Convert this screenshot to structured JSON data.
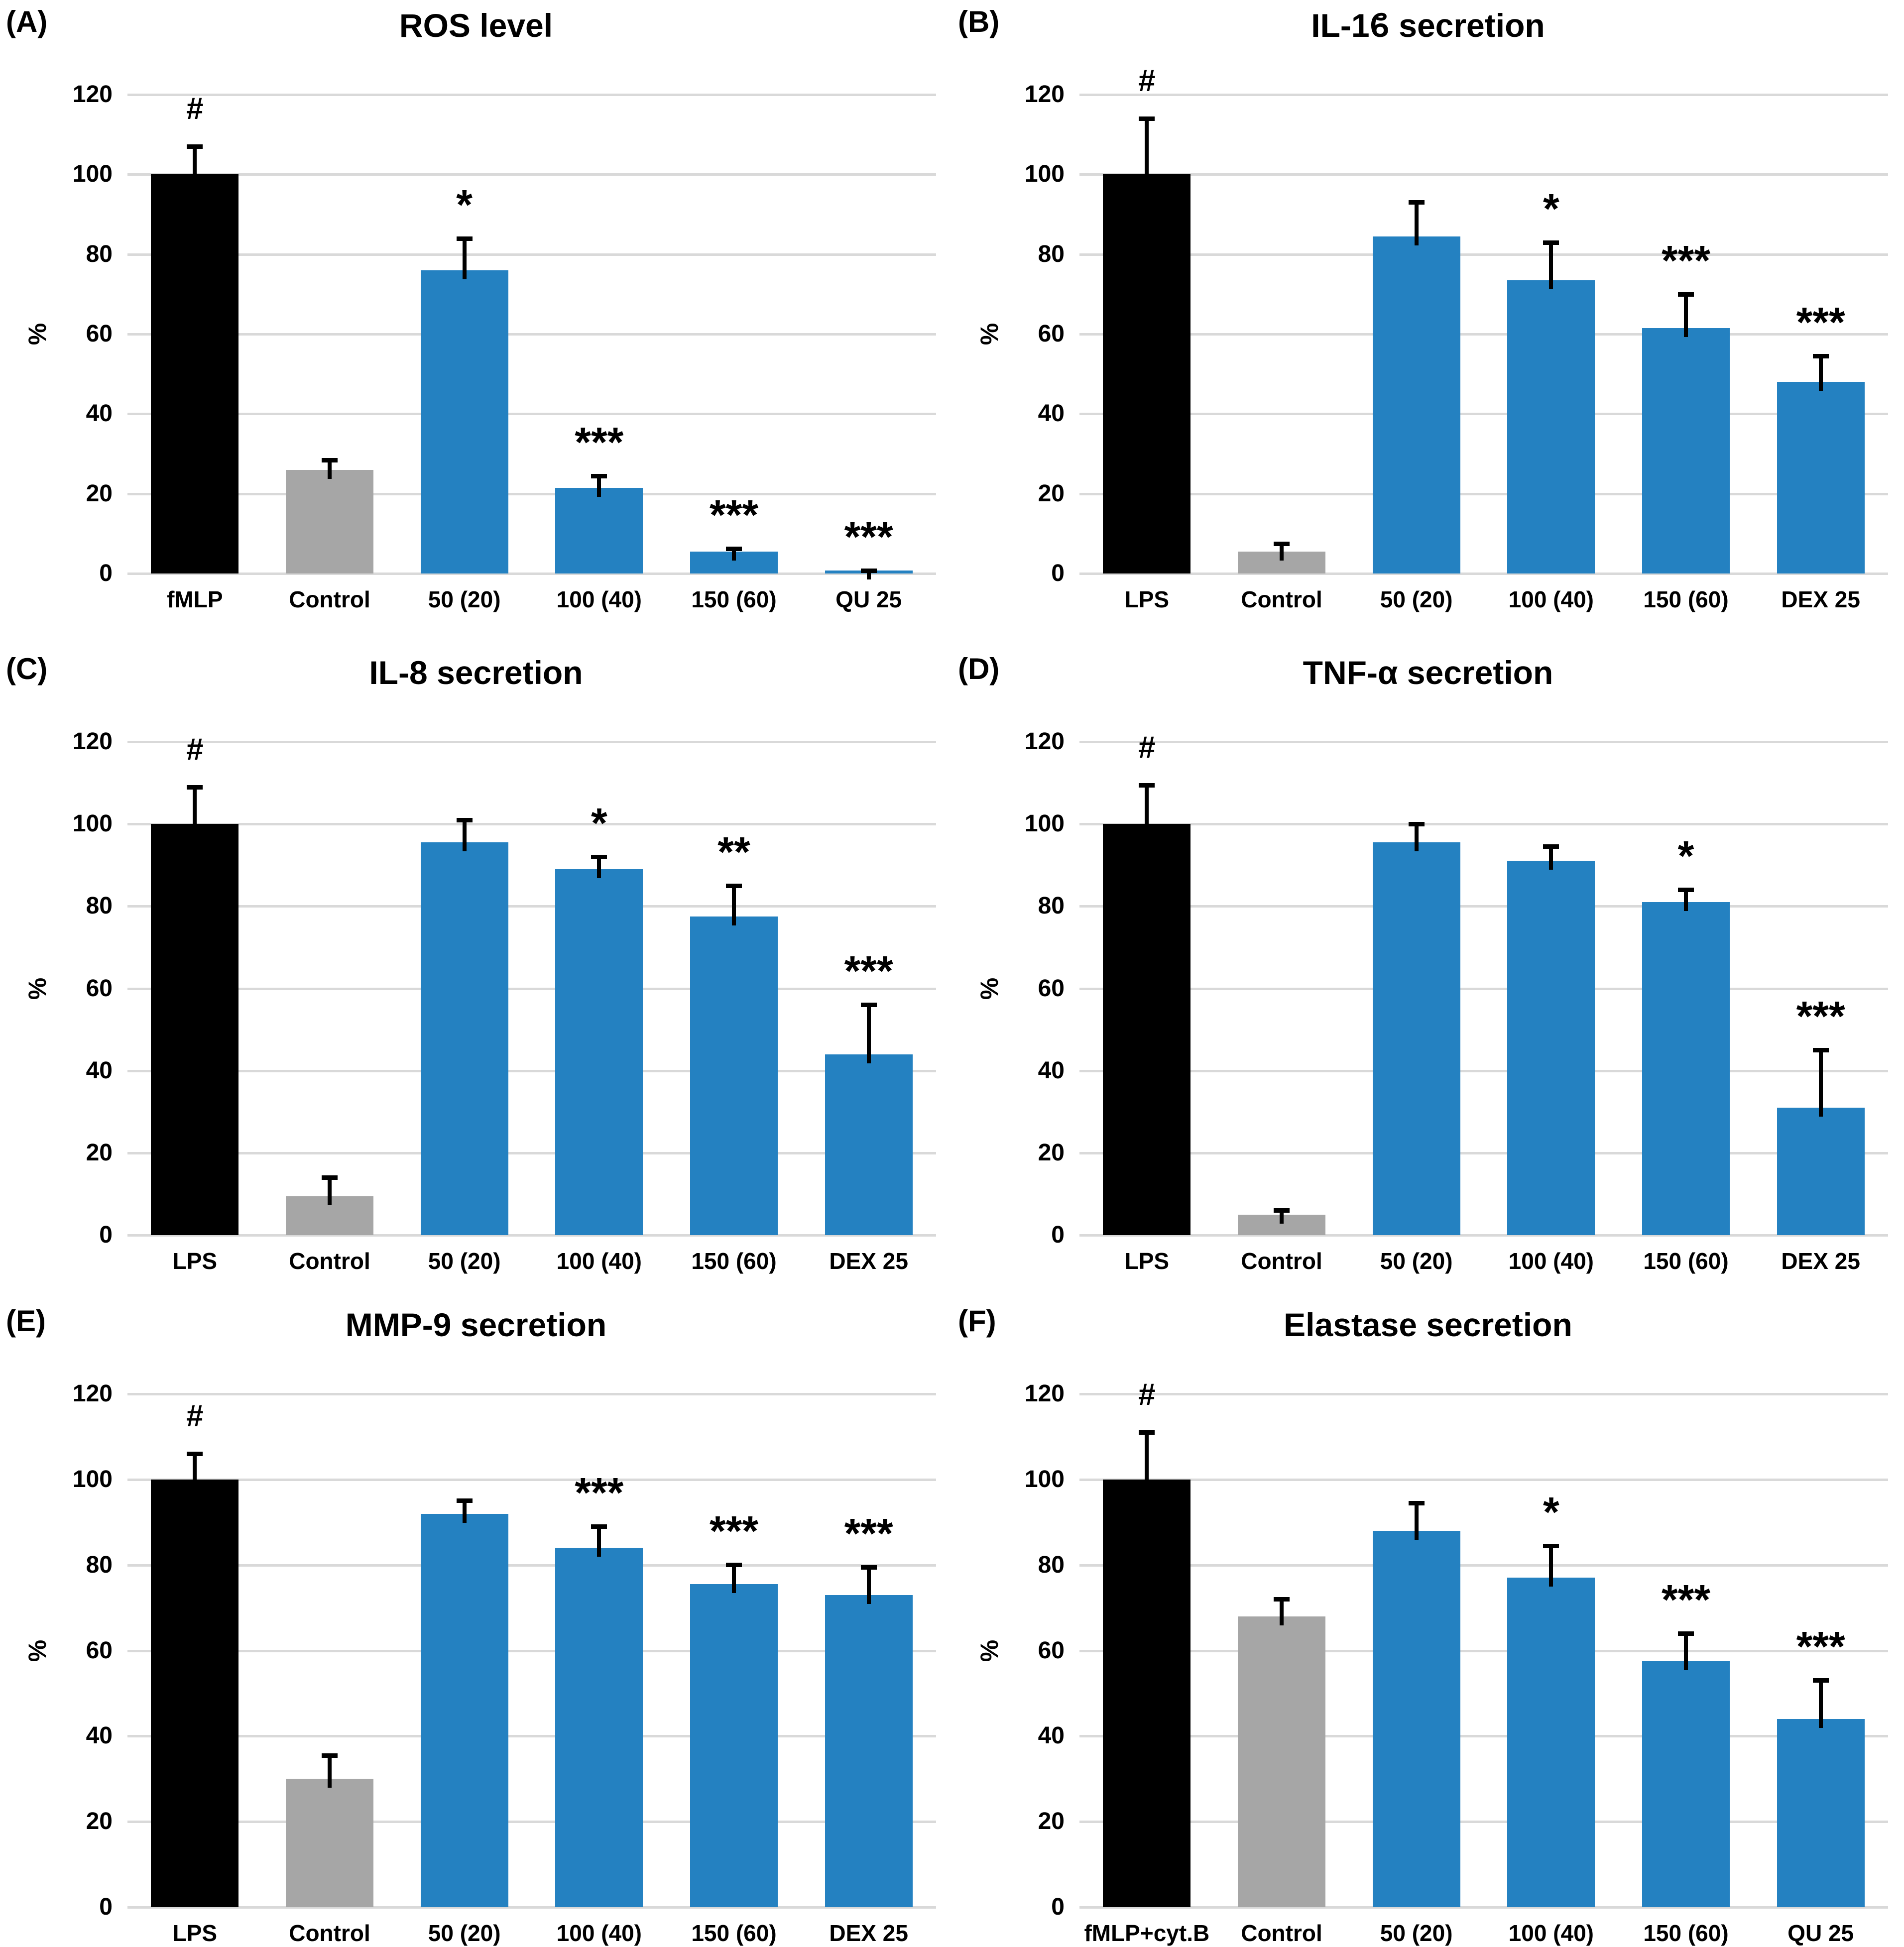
{
  "styles": {
    "bar_black": "#000000",
    "bar_gray": "#A6A6A6",
    "bar_blue": "#2481C1",
    "gridline": "#D9D9D9",
    "text": "#000000"
  },
  "yticks": [
    "0",
    "20",
    "40",
    "60",
    "80",
    "100",
    "120"
  ],
  "chart_data": [
    {
      "type": "bar",
      "letter": "(A)",
      "title": "ROS level",
      "ylabel": "%",
      "ylim": [
        0,
        120
      ],
      "ytick_step": 20,
      "grid": true,
      "legend": "none",
      "categories": [
        "fMLP",
        "Control",
        "50 (20)",
        "100 (40)",
        "150 (60)",
        "QU 25"
      ],
      "values": [
        100,
        26,
        76,
        21.5,
        5.5,
        0.7
      ],
      "errors_up": [
        7.5,
        3,
        8.5,
        3.5,
        1.2,
        0.6
      ],
      "annotations": [
        "#",
        "",
        "*",
        "***",
        "***",
        "***"
      ],
      "colors": [
        "#000000",
        "#A6A6A6",
        "#2481C1",
        "#2481C1",
        "#2481C1",
        "#2481C1"
      ]
    },
    {
      "type": "bar",
      "letter": "(B)",
      "title": "IL-1ϐ secretion",
      "ylabel": "%",
      "ylim": [
        0,
        120
      ],
      "ytick_step": 20,
      "grid": true,
      "legend": "none",
      "categories": [
        "LPS",
        "Control",
        "50 (20)",
        "100 (40)",
        "150 (60)",
        "DEX 25"
      ],
      "values": [
        100,
        5.5,
        84.5,
        73.5,
        61.5,
        48
      ],
      "errors_up": [
        14.5,
        2.5,
        9,
        10,
        9,
        7
      ],
      "annotations": [
        "#",
        "",
        "",
        "*",
        "***",
        "***"
      ],
      "colors": [
        "#000000",
        "#A6A6A6",
        "#2481C1",
        "#2481C1",
        "#2481C1",
        "#2481C1"
      ]
    },
    {
      "type": "bar",
      "letter": "(C)",
      "title": "IL-8 secretion",
      "ylabel": "%",
      "ylim": [
        0,
        120
      ],
      "ytick_step": 20,
      "grid": true,
      "legend": "none",
      "categories": [
        "LPS",
        "Control",
        "50 (20)",
        "100 (40)",
        "150 (60)",
        "DEX 25"
      ],
      "values": [
        100,
        9.5,
        95.5,
        89,
        77.5,
        44
      ],
      "errors_up": [
        9.5,
        5,
        6,
        3.5,
        8,
        12.5
      ],
      "annotations": [
        "#",
        "",
        "",
        "*",
        "**",
        "***"
      ],
      "colors": [
        "#000000",
        "#A6A6A6",
        "#2481C1",
        "#2481C1",
        "#2481C1",
        "#2481C1"
      ]
    },
    {
      "type": "bar",
      "letter": "(D)",
      "title": "TNF-α secretion",
      "ylabel": "%",
      "ylim": [
        0,
        120
      ],
      "ytick_step": 20,
      "grid": true,
      "legend": "none",
      "categories": [
        "LPS",
        "Control",
        "50 (20)",
        "100 (40)",
        "150 (60)",
        "DEX 25"
      ],
      "values": [
        100,
        5,
        95.5,
        91,
        81,
        31
      ],
      "errors_up": [
        10,
        1.5,
        5,
        4,
        3.5,
        14.5
      ],
      "annotations": [
        "#",
        "",
        "",
        "",
        "*",
        "***"
      ],
      "colors": [
        "#000000",
        "#A6A6A6",
        "#2481C1",
        "#2481C1",
        "#2481C1",
        "#2481C1"
      ]
    },
    {
      "type": "bar",
      "letter": "(E)",
      "title": "MMP-9 secretion",
      "ylabel": "%",
      "ylim": [
        0,
        120
      ],
      "ytick_step": 20,
      "grid": true,
      "legend": "none",
      "categories": [
        "LPS",
        "Control",
        "50 (20)",
        "100 (40)",
        "150 (60)",
        "DEX 25"
      ],
      "values": [
        100,
        30,
        92,
        84,
        75.5,
        73
      ],
      "errors_up": [
        6.5,
        6,
        3.5,
        5.5,
        5,
        7
      ],
      "annotations": [
        "#",
        "",
        "",
        "***",
        "***",
        "***"
      ],
      "colors": [
        "#000000",
        "#A6A6A6",
        "#2481C1",
        "#2481C1",
        "#2481C1",
        "#2481C1"
      ]
    },
    {
      "type": "bar",
      "letter": "(F)",
      "title": "Elastase secretion",
      "ylabel": "%",
      "ylim": [
        0,
        120
      ],
      "ytick_step": 20,
      "grid": true,
      "legend": "none",
      "categories": [
        "fMLP+cyt.B",
        "Control",
        "50 (20)",
        "100 (40)",
        "150 (60)",
        "QU 25"
      ],
      "values": [
        100,
        68,
        88,
        77,
        57.5,
        44
      ],
      "errors_up": [
        11.5,
        4.5,
        7,
        8,
        7,
        9.5
      ],
      "annotations": [
        "#",
        "",
        "",
        "*",
        "***",
        "***"
      ],
      "colors": [
        "#000000",
        "#A6A6A6",
        "#2481C1",
        "#2481C1",
        "#2481C1",
        "#2481C1"
      ]
    }
  ]
}
